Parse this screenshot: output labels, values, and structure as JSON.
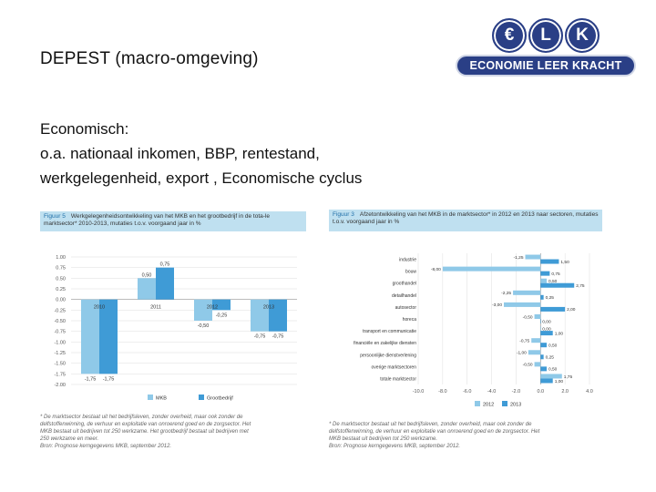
{
  "slide": {
    "title": "DEPEST (macro-omgeving)",
    "body_line1": "Economisch:",
    "body_line2": "o.a. nationaal inkomen, BBP, rentestand,",
    "body_line3": "werkgelegenheid, export , Economische cyclus"
  },
  "logo": {
    "letters": [
      "€",
      "L",
      "K"
    ],
    "name": "ECONOMIE LEER KRACHT",
    "color": "#2a3f86"
  },
  "figure5": {
    "label": "Figuur 5",
    "caption": "Werkgelegenheidsontwikkeling van het MKB en het grootbedrijf in de tota-le marktsector* 2010-2013, mutaties t.o.v. voorgaand jaar in %",
    "note1": "* De marktsector bestaat uit het bedrijfsleven, zonder overheid, maar ook zonder de",
    "note2": "delfstoffenwinning, de verhuur en exploitatie van onroerend goed en de zorgsector. Het",
    "note3": "MKB bestaat uit bedrijven tot 250 werkzame. Het grootbedrijf bestaat uit bedrijven met",
    "note4": "250 werkzame en meer.",
    "source": "Bron: Prognose kerngegevens MKB, september 2012."
  },
  "figure3": {
    "label": "Figuur 3",
    "caption": "Afzetontwikkeling van het MKB in de marktsector* in 2012 en 2013 naar sectoren, mutaties t.o.v. voorgaand jaar in %",
    "note1": "* De marktsector bestaat uit het bedrijfsleven, zonder overheid, maar ook zonder de",
    "note2": "delfstoffenwinning, de verhuur en exploitatie van onroerend goed en de zorgsector. Het",
    "note3": "MKB bestaat uit bedrijven tot 250 werkzame.",
    "source": "Bron: Prognose kerngegevens MKB, september 2012."
  },
  "chart_data": [
    {
      "type": "bar",
      "categories": [
        "2010",
        "2011",
        "2012",
        "2013"
      ],
      "series": [
        {
          "name": "MKB",
          "values": [
            -1.75,
            0.5,
            -0.5,
            -0.75
          ],
          "labels": [
            "-1,75",
            "0,50",
            "-0,50",
            "-0,75"
          ],
          "color": "#8fc9e8"
        },
        {
          "name": "Grootbedrijf",
          "values": [
            -1.75,
            0.75,
            -0.25,
            -0.75
          ],
          "labels": [
            "-1,75",
            "0,75",
            "-0,25",
            "-0,75"
          ],
          "color": "#3f9bd6"
        }
      ],
      "ylim": [
        -2,
        1
      ],
      "yticks": [
        "1.00",
        "0.75",
        "0.50",
        "0.25",
        "0.00",
        "-0.25",
        "-0.50",
        "-0.75",
        "-1.00",
        "-1.25",
        "-1.50",
        "-1.75",
        "-2.00"
      ],
      "legend": "bottom"
    },
    {
      "type": "bar",
      "orientation": "horizontal",
      "categories": [
        "industrie",
        "bouw",
        "groothandel",
        "detailhandel",
        "autosector",
        "horeca",
        "transport en communicatie",
        "financiële en zakelijke diensten",
        "persoonlijke dienstverlening",
        "overige marktsectoren",
        "totale marktsector"
      ],
      "series": [
        {
          "name": "2012",
          "values": [
            -1.25,
            -8.0,
            0.5,
            -2.25,
            -3.0,
            -0.5,
            0,
            -0.75,
            -1.0,
            -0.5,
            1.75
          ],
          "labels": [
            "-1,25",
            "-8,00",
            "0,50",
            "-2,25",
            "-3,00",
            "-0,50",
            "0,00",
            "-0,75",
            "-1,00",
            "-0,50",
            "1,75"
          ],
          "color": "#8fc9e8"
        },
        {
          "name": "2013",
          "values": [
            1.5,
            0.75,
            2.75,
            0.25,
            2.0,
            0,
            1.0,
            0.5,
            0.25,
            0.5,
            1.0
          ],
          "labels": [
            "1,50",
            "0,75",
            "2,75",
            "0,25",
            "2,00",
            "0,00",
            "1,00",
            "0,50",
            "0,25",
            "0,50",
            "1,00"
          ],
          "color": "#3f9bd6"
        }
      ],
      "xlim": [
        -10,
        4
      ],
      "xticks": [
        "-10.0",
        "-8.0",
        "-6.0",
        "-4.0",
        "-2.0",
        "0.0",
        "2.0",
        "4.0"
      ],
      "legend": "bottom"
    }
  ]
}
